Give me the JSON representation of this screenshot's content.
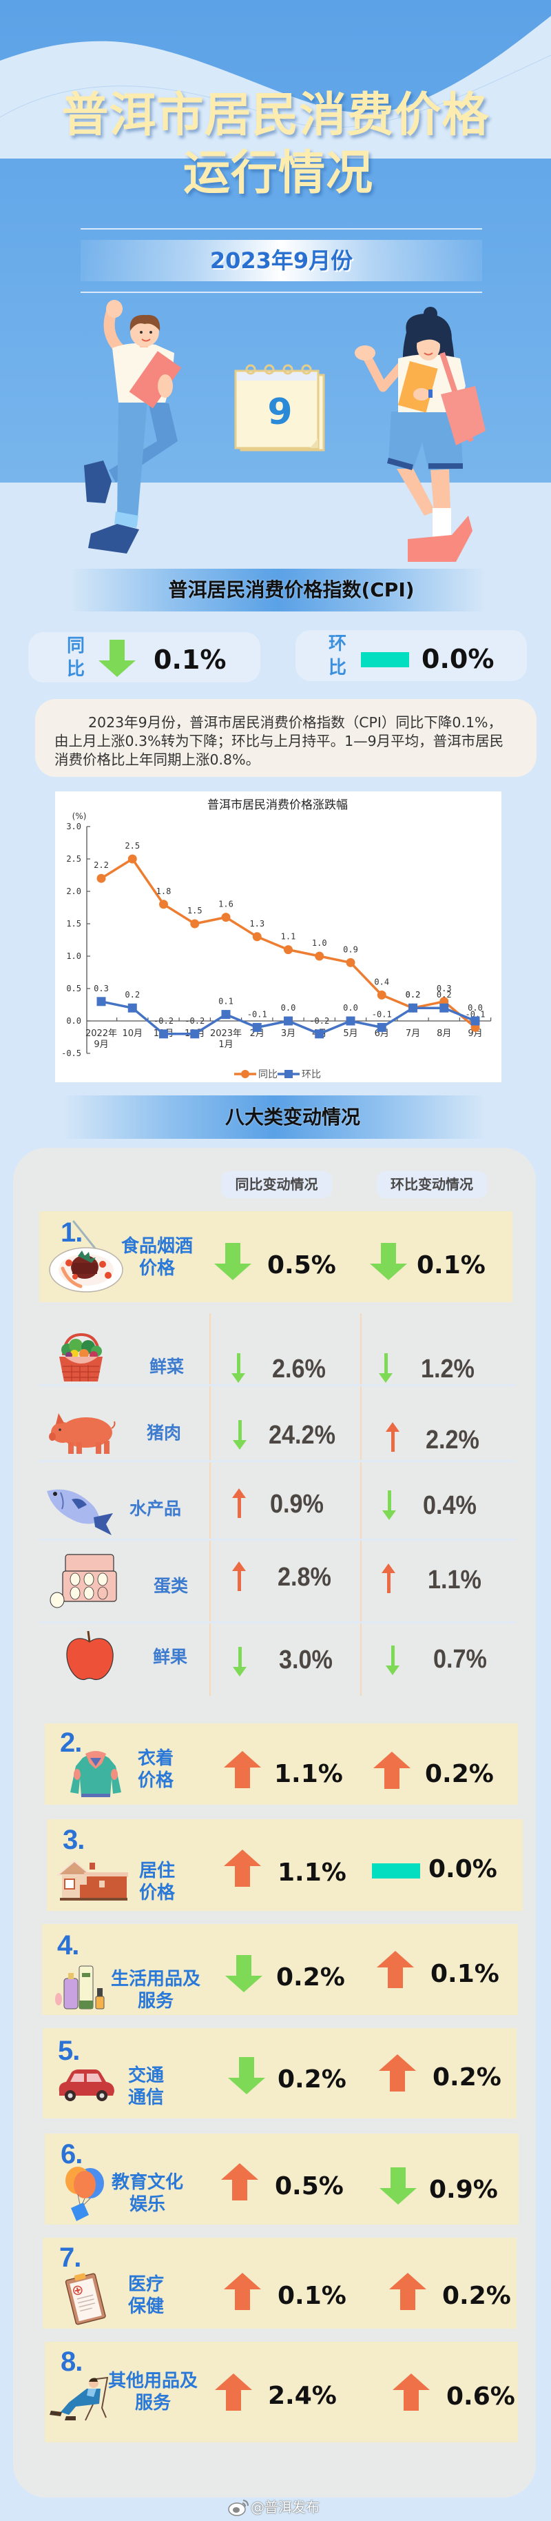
{
  "header": {
    "title_line1": "普洱市居民消费价格",
    "title_line2": "运行情况",
    "period": "2023年9月份",
    "calendar_month": "9"
  },
  "cpi": {
    "section_title": "普洱居民消费价格指数(CPI)",
    "yoy": {
      "label_top": "同",
      "label_bottom": "比",
      "direction": "down",
      "value": "0.1%"
    },
    "mom": {
      "label_top": "环",
      "label_bottom": "比",
      "direction": "flat",
      "value": "0.0%"
    },
    "summary": "2023年9月份，普洱市居民消费价格指数（CPI）同比下降0.1%，由上月上涨0.3%转为下降；环比与上月持平。1—9月平均，普洱市居民消费价格比上年同期上涨0.8%。"
  },
  "chart_data": {
    "type": "line",
    "title": "普洱市居民消费价格涨跌幅",
    "xlabel": "",
    "ylabel": "(%)",
    "categories": [
      "2022年9月",
      "10月",
      "11月",
      "12月",
      "2023年1月",
      "2月",
      "3月",
      "4月",
      "5月",
      "6月",
      "7月",
      "8月",
      "9月"
    ],
    "x_tick_labels": [
      [
        "2022年",
        "9月"
      ],
      [
        "10月"
      ],
      [
        "11月"
      ],
      [
        "12月"
      ],
      [
        "2023年",
        "1月"
      ],
      [
        "2月"
      ],
      [
        "3月"
      ],
      [
        "4月"
      ],
      [
        "5月"
      ],
      [
        "6月"
      ],
      [
        "7月"
      ],
      [
        "8月"
      ],
      [
        "9月"
      ]
    ],
    "series": [
      {
        "name": "同比",
        "color": "#ed7d31",
        "marker": "circle",
        "values": [
          2.2,
          2.5,
          1.8,
          1.5,
          1.6,
          1.3,
          1.1,
          1.0,
          0.9,
          0.4,
          0.2,
          0.3,
          -0.1
        ]
      },
      {
        "name": "环比",
        "color": "#4472c4",
        "marker": "square",
        "values": [
          0.3,
          0.2,
          -0.2,
          -0.2,
          0.1,
          -0.1,
          0.0,
          -0.2,
          0.0,
          -0.1,
          0.2,
          0.2,
          0.0
        ]
      }
    ],
    "ylim": [
      -0.5,
      3.0
    ],
    "yticks": [
      3.0,
      2.5,
      2.0,
      1.5,
      1.0,
      0.5,
      0.0,
      -0.5
    ],
    "ytick_labels": [
      "3.0",
      "2.5",
      "2.0",
      "1.5",
      "1.0",
      "0.5",
      "0.0",
      "-0.5"
    ],
    "grid": false,
    "data_labels": true,
    "legend_position": "bottom"
  },
  "categories": {
    "section_title": "八大类变动情况",
    "col_yoy": "同比变动情况",
    "col_mom": "环比变动情况",
    "items": [
      {
        "index": "1.",
        "name_line1": "食品烟酒",
        "name_line2": "价格",
        "icon": "food-plate-icon",
        "yoy": {
          "direction": "down",
          "value": "0.5%"
        },
        "mom": {
          "direction": "down",
          "value": "0.1%"
        }
      },
      {
        "index": "2.",
        "name_line1": "衣着",
        "name_line2": "价格",
        "icon": "hoodie-icon",
        "yoy": {
          "direction": "up",
          "value": "1.1%"
        },
        "mom": {
          "direction": "up",
          "value": "0.2%"
        }
      },
      {
        "index": "3.",
        "name_line1": "居住",
        "name_line2": "价格",
        "icon": "house-icon",
        "yoy": {
          "direction": "up",
          "value": "1.1%"
        },
        "mom": {
          "direction": "flat",
          "value": "0.0%"
        }
      },
      {
        "index": "4.",
        "name_line1": "生活用品及",
        "name_line2": "服务",
        "icon": "cosmetics-icon",
        "yoy": {
          "direction": "down",
          "value": "0.2%"
        },
        "mom": {
          "direction": "up",
          "value": "0.1%"
        }
      },
      {
        "index": "5.",
        "name_line1": "交通",
        "name_line2": "通信",
        "icon": "car-icon",
        "yoy": {
          "direction": "down",
          "value": "0.2%"
        },
        "mom": {
          "direction": "up",
          "value": "0.2%"
        }
      },
      {
        "index": "6.",
        "name_line1": "教育文化",
        "name_line2": "娱乐",
        "icon": "balloons-icon",
        "yoy": {
          "direction": "up",
          "value": "0.5%"
        },
        "mom": {
          "direction": "down",
          "value": "0.9%"
        }
      },
      {
        "index": "7.",
        "name_line1": "医疗",
        "name_line2": "保健",
        "icon": "clipboard-icon",
        "yoy": {
          "direction": "up",
          "value": "0.1%"
        },
        "mom": {
          "direction": "up",
          "value": "0.2%"
        }
      },
      {
        "index": "8.",
        "name_line1": "其他用品及",
        "name_line2": "服务",
        "icon": "lounger-icon",
        "yoy": {
          "direction": "up",
          "value": "2.4%"
        },
        "mom": {
          "direction": "up",
          "value": "0.6%"
        }
      }
    ],
    "food_subitems": [
      {
        "name": "鲜菜",
        "icon": "vegetable-basket-icon",
        "yoy": {
          "direction": "down",
          "value": "2.6%"
        },
        "mom": {
          "direction": "down",
          "value": "1.2%"
        }
      },
      {
        "name": "猪肉",
        "icon": "pig-icon",
        "yoy": {
          "direction": "down",
          "value": "24.2%"
        },
        "mom": {
          "direction": "up",
          "value": "2.2%"
        }
      },
      {
        "name": "水产品",
        "icon": "fish-icon",
        "yoy": {
          "direction": "up",
          "value": "0.9%"
        },
        "mom": {
          "direction": "down",
          "value": "0.4%"
        }
      },
      {
        "name": "蛋类",
        "icon": "egg-carton-icon",
        "yoy": {
          "direction": "up",
          "value": "2.8%"
        },
        "mom": {
          "direction": "up",
          "value": "1.1%"
        }
      },
      {
        "name": "鲜果",
        "icon": "apple-icon",
        "yoy": {
          "direction": "down",
          "value": "3.0%"
        },
        "mom": {
          "direction": "down",
          "value": "0.7%"
        }
      }
    ]
  },
  "footer": {
    "watermark": "@普洱发布",
    "icon": "weibo-icon"
  },
  "colors": {
    "up": "#ee7147",
    "down": "#7ed957",
    "flat": "#03dec0",
    "label_blue": "#2a78d8",
    "title_yellow": "#fcecb0",
    "row_bg": "#f5ecca",
    "panel_bg": "#e8eaea",
    "page_bg": "#d5e7f8",
    "sky": "#5ca2e6"
  }
}
